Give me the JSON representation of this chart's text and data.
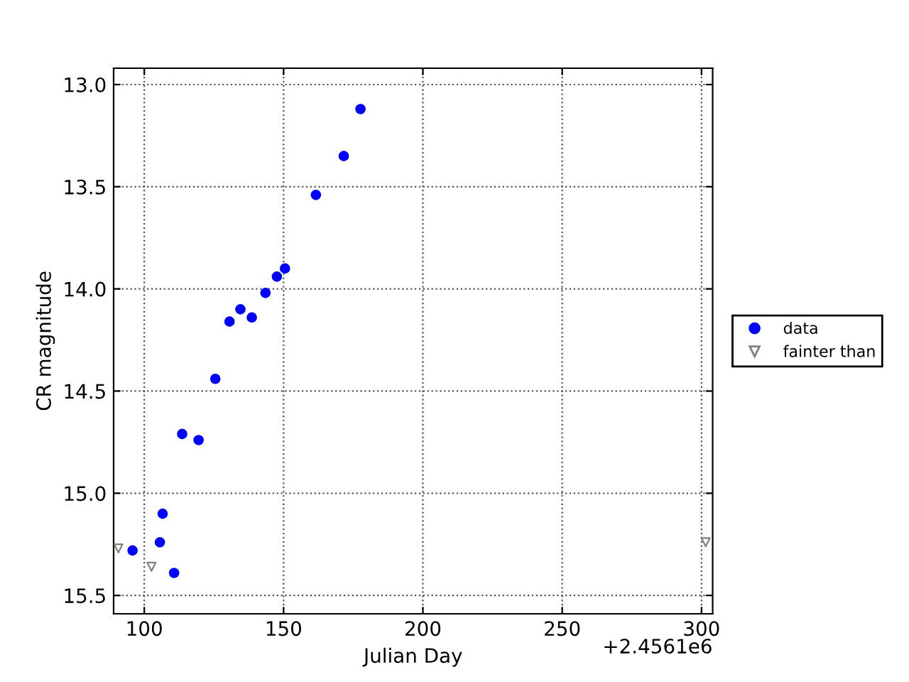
{
  "chart_data": {
    "type": "scatter",
    "xlabel": "Julian Day",
    "ylabel": "CR magnitude",
    "annotations": [
      "+2.4561e6"
    ],
    "series": [
      {
        "name": "data",
        "color": "#0000ff",
        "marker": "circle",
        "x": [
          95.8,
          105.6,
          106.6,
          110.7,
          113.6,
          119.5,
          125.5,
          130.6,
          134.5,
          138.6,
          143.5,
          147.6,
          150.5,
          161.6,
          171.6,
          177.6
        ],
        "values": [
          15.28,
          15.24,
          15.1,
          15.39,
          14.71,
          14.74,
          14.44,
          14.16,
          14.1,
          14.14,
          14.02,
          13.94,
          13.9,
          13.54,
          13.35,
          13.12
        ]
      },
      {
        "name": "fainter than",
        "color": "#808080",
        "marker": "triangle",
        "x": [
          90.7,
          102.6,
          301.5
        ],
        "values": [
          15.27,
          15.36,
          15.24
        ]
      }
    ],
    "xlim": [
      89,
      304
    ],
    "ylim": [
      15.59,
      12.92
    ],
    "xticks": [
      100,
      150,
      200,
      250,
      300
    ],
    "yticks": [
      {
        "value": 13.0,
        "label": "13.0"
      },
      {
        "value": 13.5,
        "label": "13.5"
      },
      {
        "value": 14.0,
        "label": "14.0"
      },
      {
        "value": 14.5,
        "label": "14.5"
      },
      {
        "value": 15.0,
        "label": "15.0"
      },
      {
        "value": 15.5,
        "label": "15.5"
      }
    ],
    "grid": true,
    "legend": "right"
  }
}
